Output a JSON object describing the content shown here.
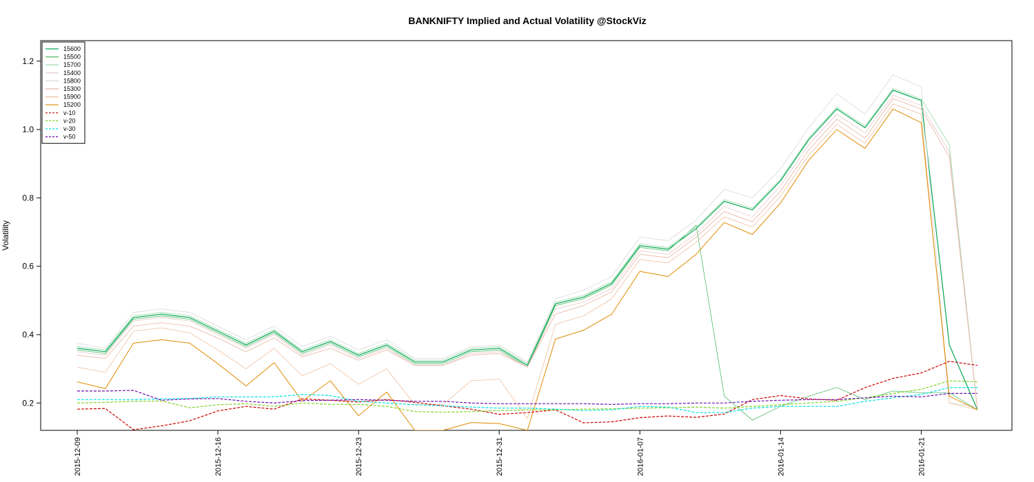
{
  "chart_data": {
    "type": "line",
    "title": "BANKNIFTY Implied and Actual Volatility @StockViz",
    "xlabel": "",
    "ylabel": "Volatility",
    "ylim": [
      0.12,
      1.26
    ],
    "yticks": [
      0.2,
      0.4,
      0.6,
      0.8,
      1.0,
      1.2
    ],
    "ytick_labels": [
      "0.2",
      "0.4",
      "0.6",
      "0.8",
      "1.0",
      "1.2"
    ],
    "x": [
      "2015-12-09",
      "2015-12-10",
      "2015-12-11",
      "2015-12-14",
      "2015-12-15",
      "2015-12-16",
      "2015-12-17",
      "2015-12-18",
      "2015-12-21",
      "2015-12-22",
      "2015-12-23",
      "2015-12-24",
      "2015-12-28",
      "2015-12-29",
      "2015-12-30",
      "2015-12-31",
      "2016-01-01",
      "2016-01-04",
      "2016-01-05",
      "2016-01-06",
      "2016-01-07",
      "2016-01-08",
      "2016-01-11",
      "2016-01-12",
      "2016-01-13",
      "2016-01-14",
      "2016-01-15",
      "2016-01-18",
      "2016-01-19",
      "2016-01-20",
      "2016-01-21",
      "2016-01-22",
      "2016-01-25"
    ],
    "xtick_labels": [
      "2015-12-09",
      "2015-12-16",
      "2015-12-23",
      "2015-12-31",
      "2016-01-07",
      "2016-01-14",
      "2016-01-21"
    ],
    "xtick_indices": [
      0,
      5,
      10,
      15,
      20,
      25,
      30
    ],
    "legend_position": "top-left",
    "grid": false,
    "series": [
      {
        "name": "15600",
        "color": "#00a651",
        "dash": "",
        "width": 1.2,
        "values": [
          0.36,
          0.35,
          0.45,
          0.46,
          0.45,
          0.41,
          0.37,
          0.41,
          0.35,
          0.38,
          0.34,
          0.37,
          0.32,
          0.32,
          0.355,
          0.36,
          0.31,
          0.49,
          0.51,
          0.55,
          0.66,
          0.65,
          0.71,
          0.79,
          0.765,
          0.85,
          0.97,
          1.06,
          1.005,
          1.115,
          1.085,
          0.37,
          0.18
        ]
      },
      {
        "name": "15500",
        "color": "#4dbb6a",
        "dash": "",
        "width": 0.8,
        "values": [
          0.355,
          0.345,
          0.445,
          0.455,
          0.445,
          0.405,
          0.365,
          0.405,
          0.345,
          0.375,
          0.335,
          0.365,
          0.315,
          0.315,
          0.35,
          0.355,
          0.305,
          0.485,
          0.505,
          0.545,
          0.655,
          0.645,
          0.72,
          0.22,
          0.15,
          0.19,
          0.22,
          0.245,
          0.21,
          0.235,
          0.23,
          0.23,
          0.18
        ]
      },
      {
        "name": "15700",
        "color": "#98d8a8",
        "dash": "",
        "width": 0.8,
        "values": [
          0.365,
          0.355,
          0.455,
          0.465,
          0.455,
          0.415,
          0.375,
          0.415,
          0.355,
          0.385,
          0.345,
          0.375,
          0.325,
          0.325,
          0.36,
          0.365,
          0.315,
          0.495,
          0.515,
          0.555,
          0.665,
          0.655,
          0.715,
          0.795,
          0.77,
          0.855,
          0.975,
          1.065,
          1.01,
          1.12,
          1.09,
          0.955,
          0.18
        ]
      },
      {
        "name": "15400",
        "color": "#e6c8c8",
        "dash": "",
        "width": 0.8,
        "values": [
          0.35,
          0.34,
          0.44,
          0.45,
          0.44,
          0.4,
          0.36,
          0.4,
          0.34,
          0.37,
          0.33,
          0.36,
          0.31,
          0.31,
          0.345,
          0.35,
          0.305,
          0.475,
          0.495,
          0.535,
          0.645,
          0.635,
          0.695,
          0.775,
          0.745,
          0.835,
          0.955,
          1.045,
          0.99,
          1.1,
          1.07,
          0.935,
          0.18
        ]
      },
      {
        "name": "15800",
        "color": "#d9d9d9",
        "dash": "",
        "width": 0.8,
        "values": [
          0.375,
          0.36,
          0.465,
          0.475,
          0.465,
          0.425,
          0.385,
          0.425,
          0.365,
          0.395,
          0.355,
          0.385,
          0.33,
          0.33,
          0.365,
          0.37,
          0.32,
          0.505,
          0.53,
          0.57,
          0.685,
          0.675,
          0.735,
          0.825,
          0.8,
          0.885,
          1.005,
          1.105,
          1.045,
          1.16,
          1.125,
          0.2,
          0.19
        ]
      },
      {
        "name": "15300",
        "color": "#e8b2a0",
        "dash": "",
        "width": 0.8,
        "values": [
          0.34,
          0.33,
          0.425,
          0.435,
          0.425,
          0.39,
          0.35,
          0.39,
          0.335,
          0.36,
          0.325,
          0.355,
          0.31,
          0.31,
          0.34,
          0.345,
          0.305,
          0.46,
          0.485,
          0.525,
          0.635,
          0.625,
          0.685,
          0.76,
          0.73,
          0.82,
          0.94,
          1.03,
          0.975,
          1.09,
          1.06,
          0.92,
          0.18
        ]
      },
      {
        "name": "15900",
        "color": "#f0c0a0",
        "dash": "",
        "width": 0.8,
        "values": [
          0.305,
          0.29,
          0.41,
          0.42,
          0.405,
          0.355,
          0.3,
          0.36,
          0.28,
          0.315,
          0.255,
          0.3,
          0.195,
          0.195,
          0.265,
          0.27,
          0.155,
          0.43,
          0.455,
          0.505,
          0.62,
          0.61,
          0.67,
          0.745,
          0.715,
          0.805,
          0.925,
          1.015,
          0.96,
          1.075,
          1.045,
          0.2,
          0.18
        ]
      },
      {
        "name": "15200",
        "color": "#e08a00",
        "dash": "",
        "width": 1.0,
        "values": [
          0.262,
          0.242,
          0.375,
          0.385,
          0.375,
          0.315,
          0.25,
          0.318,
          0.205,
          0.265,
          0.163,
          0.232,
          0.12,
          0.12,
          0.143,
          0.14,
          0.12,
          0.387,
          0.413,
          0.46,
          0.585,
          0.57,
          0.635,
          0.728,
          0.693,
          0.785,
          0.91,
          1.0,
          0.945,
          1.06,
          1.02,
          0.22,
          0.18
        ]
      },
      {
        "name": "v-10",
        "color": "#cc0000",
        "dash": "4,2",
        "width": 1.2,
        "values": [
          0.182,
          0.184,
          0.122,
          0.133,
          0.148,
          0.177,
          0.19,
          0.182,
          0.212,
          0.208,
          0.203,
          0.21,
          0.202,
          0.192,
          0.182,
          0.167,
          0.172,
          0.18,
          0.142,
          0.145,
          0.157,
          0.162,
          0.158,
          0.168,
          0.21,
          0.222,
          0.212,
          0.208,
          0.245,
          0.272,
          0.288,
          0.322,
          0.31
        ]
      },
      {
        "name": "v-20",
        "color": "#7ed321",
        "dash": "4,2",
        "width": 1.2,
        "values": [
          0.2,
          0.202,
          0.205,
          0.206,
          0.186,
          0.195,
          0.198,
          0.19,
          0.2,
          0.196,
          0.196,
          0.19,
          0.175,
          0.173,
          0.175,
          0.178,
          0.18,
          0.18,
          0.182,
          0.183,
          0.185,
          0.186,
          0.188,
          0.185,
          0.19,
          0.195,
          0.2,
          0.205,
          0.215,
          0.228,
          0.24,
          0.265,
          0.262
        ]
      },
      {
        "name": "v-30",
        "color": "#00e0e0",
        "dash": "4,2",
        "width": 1.2,
        "values": [
          0.21,
          0.21,
          0.21,
          0.212,
          0.213,
          0.218,
          0.218,
          0.218,
          0.225,
          0.222,
          0.205,
          0.2,
          0.195,
          0.192,
          0.188,
          0.185,
          0.185,
          0.182,
          0.178,
          0.18,
          0.19,
          0.188,
          0.172,
          0.172,
          0.185,
          0.19,
          0.19,
          0.19,
          0.205,
          0.215,
          0.225,
          0.245,
          0.245
        ]
      },
      {
        "name": "v-50",
        "color": "#6a0dad",
        "dash": "4,2",
        "width": 1.2,
        "values": [
          0.235,
          0.235,
          0.237,
          0.208,
          0.212,
          0.213,
          0.205,
          0.2,
          0.207,
          0.208,
          0.21,
          0.208,
          0.205,
          0.205,
          0.2,
          0.198,
          0.198,
          0.198,
          0.198,
          0.196,
          0.198,
          0.198,
          0.2,
          0.2,
          0.205,
          0.208,
          0.21,
          0.21,
          0.215,
          0.22,
          0.218,
          0.228,
          0.228
        ]
      }
    ]
  }
}
